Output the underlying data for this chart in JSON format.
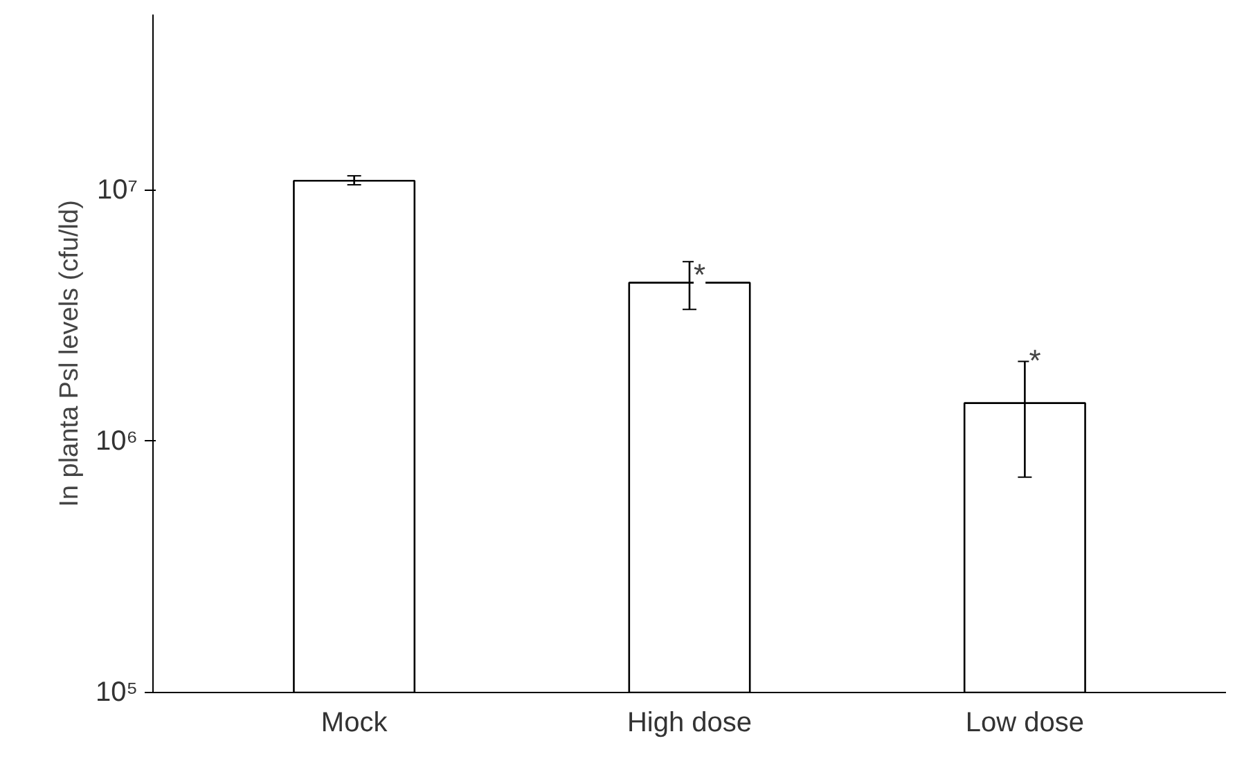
{
  "chart_data": {
    "type": "bar",
    "ylabel": "In planta Psl levels (cfu/ld)",
    "categories": [
      "Mock",
      "High dose",
      "Low dose"
    ],
    "values": [
      10900000,
      4280000,
      1420000
    ],
    "errors": [
      [
        10500000,
        11400000
      ],
      [
        3350000,
        5190000
      ],
      [
        720000,
        2080000
      ]
    ],
    "colors": [
      "#ffffff",
      "#ffffff",
      "#ffffff"
    ],
    "log": true,
    "ylim": [
      100000,
      50000000
    ],
    "yticks": [
      {
        "value": 100000,
        "label": "10⁵"
      },
      {
        "value": 1000000,
        "label": "10⁶"
      },
      {
        "value": 10000000,
        "label": "10⁷"
      }
    ],
    "annotations": [
      {
        "text": "*",
        "x": "High dose",
        "y": 4600000
      },
      {
        "text": "*",
        "x": "Low dose",
        "y": 2100000
      }
    ],
    "grid": false
  }
}
